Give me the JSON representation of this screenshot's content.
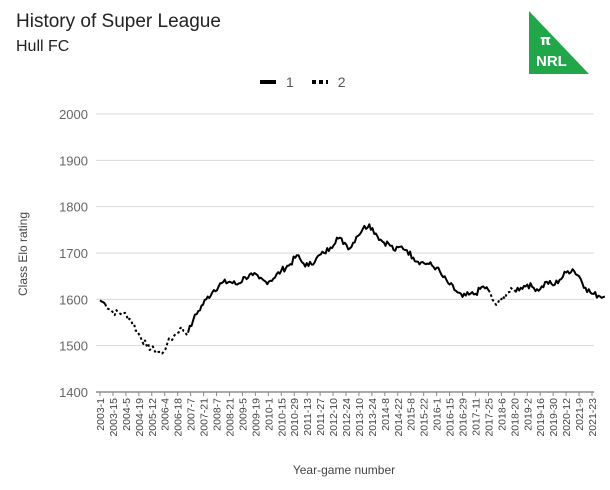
{
  "header": {
    "title": "History of Super League",
    "subtitle": "Hull FC"
  },
  "logo": {
    "symbol": "π",
    "text": "NRL",
    "color": "#21a74a"
  },
  "legend": [
    {
      "label": "1",
      "style": "solid"
    },
    {
      "label": "2",
      "style": "dotted"
    }
  ],
  "chart_data": {
    "type": "line",
    "title": "History of Super League",
    "subtitle": "Hull FC",
    "xlabel": "Year-game number",
    "ylabel": "Class Elo rating",
    "ylim": [
      1400,
      2000
    ],
    "yticks": [
      1400,
      1500,
      1600,
      1700,
      1800,
      1900,
      2000
    ],
    "x_tick_labels": [
      "2003-1",
      "2003-15",
      "2004-5",
      "2004-19",
      "2005-12",
      "2006-4",
      "2006-18",
      "2007-7",
      "2007-21",
      "2008-7",
      "2008-21",
      "2009-5",
      "2009-19",
      "2010-1",
      "2010-15",
      "2010-29",
      "2011-13",
      "2011-27",
      "2012-10",
      "2012-24",
      "2013-10",
      "2013-24",
      "2014-8",
      "2014-22",
      "2015-8",
      "2015-22",
      "2016-1",
      "2016-15",
      "2016-29",
      "2017-11",
      "2017-25",
      "2018-6",
      "2018-20",
      "2019-2",
      "2019-16",
      "2019-30",
      "2020-12",
      "2021-9",
      "2021-23"
    ],
    "grid": true,
    "legend_position": "top",
    "line_color": "#000000",
    "series": [
      {
        "name": "1",
        "style": "solid",
        "points": [
          {
            "x": 0,
            "y": 1598
          },
          {
            "x": 0.4,
            "y": 1590
          }
        ]
      },
      {
        "name": "2",
        "style": "dotted",
        "points": [
          {
            "x": 0.4,
            "y": 1590
          },
          {
            "x": 1,
            "y": 1572
          },
          {
            "x": 1.8,
            "y": 1570
          },
          {
            "x": 2.4,
            "y": 1555
          },
          {
            "x": 3,
            "y": 1525
          },
          {
            "x": 3.6,
            "y": 1500
          },
          {
            "x": 4.2,
            "y": 1490
          },
          {
            "x": 4.8,
            "y": 1483
          },
          {
            "x": 5.2,
            "y": 1505
          },
          {
            "x": 5.7,
            "y": 1520
          },
          {
            "x": 6.2,
            "y": 1538
          },
          {
            "x": 6.8,
            "y": 1528
          }
        ]
      },
      {
        "name": "1",
        "style": "solid",
        "points": [
          {
            "x": 6.8,
            "y": 1528
          },
          {
            "x": 7.2,
            "y": 1555
          },
          {
            "x": 7.6,
            "y": 1575
          },
          {
            "x": 8.2,
            "y": 1600
          },
          {
            "x": 8.8,
            "y": 1620
          },
          {
            "x": 9.4,
            "y": 1635
          },
          {
            "x": 10,
            "y": 1638
          },
          {
            "x": 10.6,
            "y": 1632
          },
          {
            "x": 11.2,
            "y": 1648
          },
          {
            "x": 11.8,
            "y": 1652
          },
          {
            "x": 12.3,
            "y": 1645
          },
          {
            "x": 12.8,
            "y": 1638
          },
          {
            "x": 13.4,
            "y": 1645
          },
          {
            "x": 14,
            "y": 1662
          },
          {
            "x": 14.7,
            "y": 1676
          },
          {
            "x": 15.2,
            "y": 1695
          },
          {
            "x": 15.6,
            "y": 1680
          },
          {
            "x": 16.1,
            "y": 1672
          },
          {
            "x": 16.7,
            "y": 1688
          },
          {
            "x": 17.3,
            "y": 1700
          },
          {
            "x": 17.8,
            "y": 1712
          },
          {
            "x": 18.3,
            "y": 1733
          },
          {
            "x": 18.9,
            "y": 1722
          },
          {
            "x": 19.3,
            "y": 1710
          },
          {
            "x": 19.8,
            "y": 1735
          },
          {
            "x": 20.3,
            "y": 1752
          },
          {
            "x": 20.8,
            "y": 1762
          },
          {
            "x": 21.3,
            "y": 1742
          },
          {
            "x": 21.8,
            "y": 1725
          },
          {
            "x": 22.3,
            "y": 1720
          },
          {
            "x": 22.8,
            "y": 1705
          },
          {
            "x": 23.3,
            "y": 1714
          },
          {
            "x": 23.7,
            "y": 1706
          },
          {
            "x": 24.2,
            "y": 1690
          },
          {
            "x": 24.8,
            "y": 1680
          },
          {
            "x": 25.4,
            "y": 1676
          },
          {
            "x": 26,
            "y": 1668
          },
          {
            "x": 26.5,
            "y": 1648
          },
          {
            "x": 27,
            "y": 1632
          },
          {
            "x": 27.5,
            "y": 1618
          },
          {
            "x": 28,
            "y": 1605
          },
          {
            "x": 28.5,
            "y": 1610
          },
          {
            "x": 29,
            "y": 1612
          },
          {
            "x": 29.6,
            "y": 1628
          },
          {
            "x": 30,
            "y": 1620
          }
        ]
      },
      {
        "name": "2",
        "style": "dotted",
        "points": [
          {
            "x": 30,
            "y": 1620
          },
          {
            "x": 30.3,
            "y": 1600
          },
          {
            "x": 30.6,
            "y": 1588
          },
          {
            "x": 31,
            "y": 1600
          },
          {
            "x": 31.5,
            "y": 1615
          },
          {
            "x": 32,
            "y": 1620
          }
        ]
      },
      {
        "name": "1",
        "style": "solid",
        "points": [
          {
            "x": 32,
            "y": 1620
          },
          {
            "x": 32.5,
            "y": 1625
          },
          {
            "x": 33,
            "y": 1632
          },
          {
            "x": 33.5,
            "y": 1625
          },
          {
            "x": 34,
            "y": 1622
          },
          {
            "x": 34.5,
            "y": 1638
          },
          {
            "x": 35,
            "y": 1630
          },
          {
            "x": 35.5,
            "y": 1642
          },
          {
            "x": 36,
            "y": 1658
          },
          {
            "x": 36.5,
            "y": 1665
          },
          {
            "x": 37,
            "y": 1650
          },
          {
            "x": 37.5,
            "y": 1625
          },
          {
            "x": 38,
            "y": 1612
          },
          {
            "x": 38.5,
            "y": 1608
          },
          {
            "x": 39,
            "y": 1606
          }
        ]
      }
    ]
  }
}
